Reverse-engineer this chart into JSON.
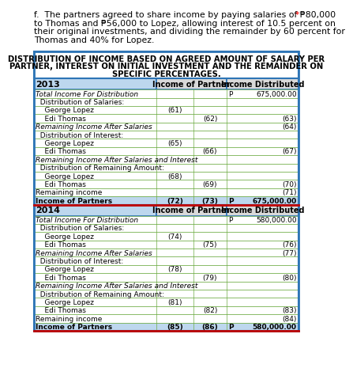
{
  "intro_line1": "f.  The partners agreed to share income by paying salaries of ₱80,000",
  "intro_line2": "to Thomas and ₱56,000 to Lopez, allowing interest of 10.5 percent on",
  "intro_line3": "their original investments, and dividing the remainder by 60 percent for",
  "intro_line4": "Thomas and 40% for Lopez.",
  "asterisk": "*",
  "table_title_lines": [
    "DISTRIBUTION OF INCOME BASED ON AGREED AMOUNT OF SALARY PER",
    "PARTNER, INTEREST ON INITIAL INVESTMENT AND THE REMAINDER ON",
    "SPECIFIC PERCENTAGES."
  ],
  "outer_border_color": "#2e75b6",
  "inner_border_color": "#70ad47",
  "header_bg": "#d9d9d9",
  "year_header_bg": "#bdd7ee",
  "bold_row_bg": "#bdd7ee",
  "red_line_color": "#c00000",
  "col_income_partner": "Income of Partner",
  "col_income_distributed": "Income Distributed",
  "bg_color": "#ffffff",
  "text_color": "#000000",
  "rows_2013": [
    {
      "label": "Total Income For Distribution",
      "italic": true,
      "bold": false,
      "indent": 0,
      "col1": "",
      "col2": "",
      "col3_prefix": "P",
      "col3": "675,000.00"
    },
    {
      "label": "  Distribution of Salaries:",
      "italic": false,
      "bold": false,
      "indent": 0,
      "col1": "",
      "col2": "",
      "col3_prefix": "",
      "col3": ""
    },
    {
      "label": "    George Lopez",
      "italic": false,
      "bold": false,
      "indent": 0,
      "col1": "(61)",
      "col2": "",
      "col3_prefix": "",
      "col3": ""
    },
    {
      "label": "    Edi Thomas",
      "italic": false,
      "bold": false,
      "indent": 0,
      "col1": "",
      "col2": "(62)",
      "col3_prefix": "",
      "col3": "(63)"
    },
    {
      "label": "Remaining Income After Salaries",
      "italic": true,
      "bold": false,
      "indent": 0,
      "col1": "",
      "col2": "",
      "col3_prefix": "",
      "col3": "(64)"
    },
    {
      "label": "  Distribution of Interest:",
      "italic": false,
      "bold": false,
      "indent": 0,
      "col1": "",
      "col2": "",
      "col3_prefix": "",
      "col3": ""
    },
    {
      "label": "    George Lopez",
      "italic": false,
      "bold": false,
      "indent": 0,
      "col1": "(65)",
      "col2": "",
      "col3_prefix": "",
      "col3": ""
    },
    {
      "label": "    Edi Thomas",
      "italic": false,
      "bold": false,
      "indent": 0,
      "col1": "",
      "col2": "(66)",
      "col3_prefix": "",
      "col3": "(67)"
    },
    {
      "label": "Remaining Income After Salaries and Interest",
      "italic": true,
      "bold": false,
      "indent": 0,
      "col1": "",
      "col2": "",
      "col3_prefix": "",
      "col3": ""
    },
    {
      "label": "  Distribution of Remaining Amount:",
      "italic": false,
      "bold": false,
      "indent": 0,
      "col1": "",
      "col2": "",
      "col3_prefix": "",
      "col3": ""
    },
    {
      "label": "    George Lopez",
      "italic": false,
      "bold": false,
      "indent": 0,
      "col1": "(68)",
      "col2": "",
      "col3_prefix": "",
      "col3": ""
    },
    {
      "label": "    Edi Thomas",
      "italic": false,
      "bold": false,
      "indent": 0,
      "col1": "",
      "col2": "(69)",
      "col3_prefix": "",
      "col3": "(70)"
    },
    {
      "label": "Remaining income",
      "italic": false,
      "bold": false,
      "indent": 0,
      "col1": "",
      "col2": "",
      "col3_prefix": "",
      "col3": "(71)"
    },
    {
      "label": "Income of Partners",
      "italic": false,
      "bold": true,
      "indent": 0,
      "col1": "(72)",
      "col2": "(73)",
      "col3_prefix": "P",
      "col3": "675,000.00"
    }
  ],
  "rows_2014": [
    {
      "label": "Total Income For Distribution",
      "italic": true,
      "bold": false,
      "indent": 0,
      "col1": "",
      "col2": "",
      "col3_prefix": "P",
      "col3": "580,000.00"
    },
    {
      "label": "  Distribution of Salaries:",
      "italic": false,
      "bold": false,
      "indent": 0,
      "col1": "",
      "col2": "",
      "col3_prefix": "",
      "col3": ""
    },
    {
      "label": "    George Lopez",
      "italic": false,
      "bold": false,
      "indent": 0,
      "col1": "(74)",
      "col2": "",
      "col3_prefix": "",
      "col3": ""
    },
    {
      "label": "    Edi Thomas",
      "italic": false,
      "bold": false,
      "indent": 0,
      "col1": "",
      "col2": "(75)",
      "col3_prefix": "",
      "col3": "(76)"
    },
    {
      "label": "Remaining Income After Salaries",
      "italic": true,
      "bold": false,
      "indent": 0,
      "col1": "",
      "col2": "",
      "col3_prefix": "",
      "col3": "(77)"
    },
    {
      "label": "  Distribution of Interest:",
      "italic": false,
      "bold": false,
      "indent": 0,
      "col1": "",
      "col2": "",
      "col3_prefix": "",
      "col3": ""
    },
    {
      "label": "    George Lopez",
      "italic": false,
      "bold": false,
      "indent": 0,
      "col1": "(78)",
      "col2": "",
      "col3_prefix": "",
      "col3": ""
    },
    {
      "label": "    Edi Thomas",
      "italic": false,
      "bold": false,
      "indent": 0,
      "col1": "",
      "col2": "(79)",
      "col3_prefix": "",
      "col3": "(80)"
    },
    {
      "label": "Remaining Income After Salaries and Interest",
      "italic": true,
      "bold": false,
      "indent": 0,
      "col1": "",
      "col2": "",
      "col3_prefix": "",
      "col3": ""
    },
    {
      "label": "  Distribution of Remaining Amount:",
      "italic": false,
      "bold": false,
      "indent": 0,
      "col1": "",
      "col2": "",
      "col3_prefix": "",
      "col3": ""
    },
    {
      "label": "    George Lopez",
      "italic": false,
      "bold": false,
      "indent": 0,
      "col1": "(81)",
      "col2": "",
      "col3_prefix": "",
      "col3": ""
    },
    {
      "label": "    Edi Thomas",
      "italic": false,
      "bold": false,
      "indent": 0,
      "col1": "",
      "col2": "(82)",
      "col3_prefix": "",
      "col3": "(83)"
    },
    {
      "label": "Remaining income",
      "italic": false,
      "bold": false,
      "indent": 0,
      "col1": "",
      "col2": "",
      "col3_prefix": "",
      "col3": "(84)"
    },
    {
      "label": "Income of Partners",
      "italic": false,
      "bold": true,
      "indent": 0,
      "col1": "(85)",
      "col2": "(86)",
      "col3_prefix": "P",
      "col3": "580,000.00"
    }
  ]
}
